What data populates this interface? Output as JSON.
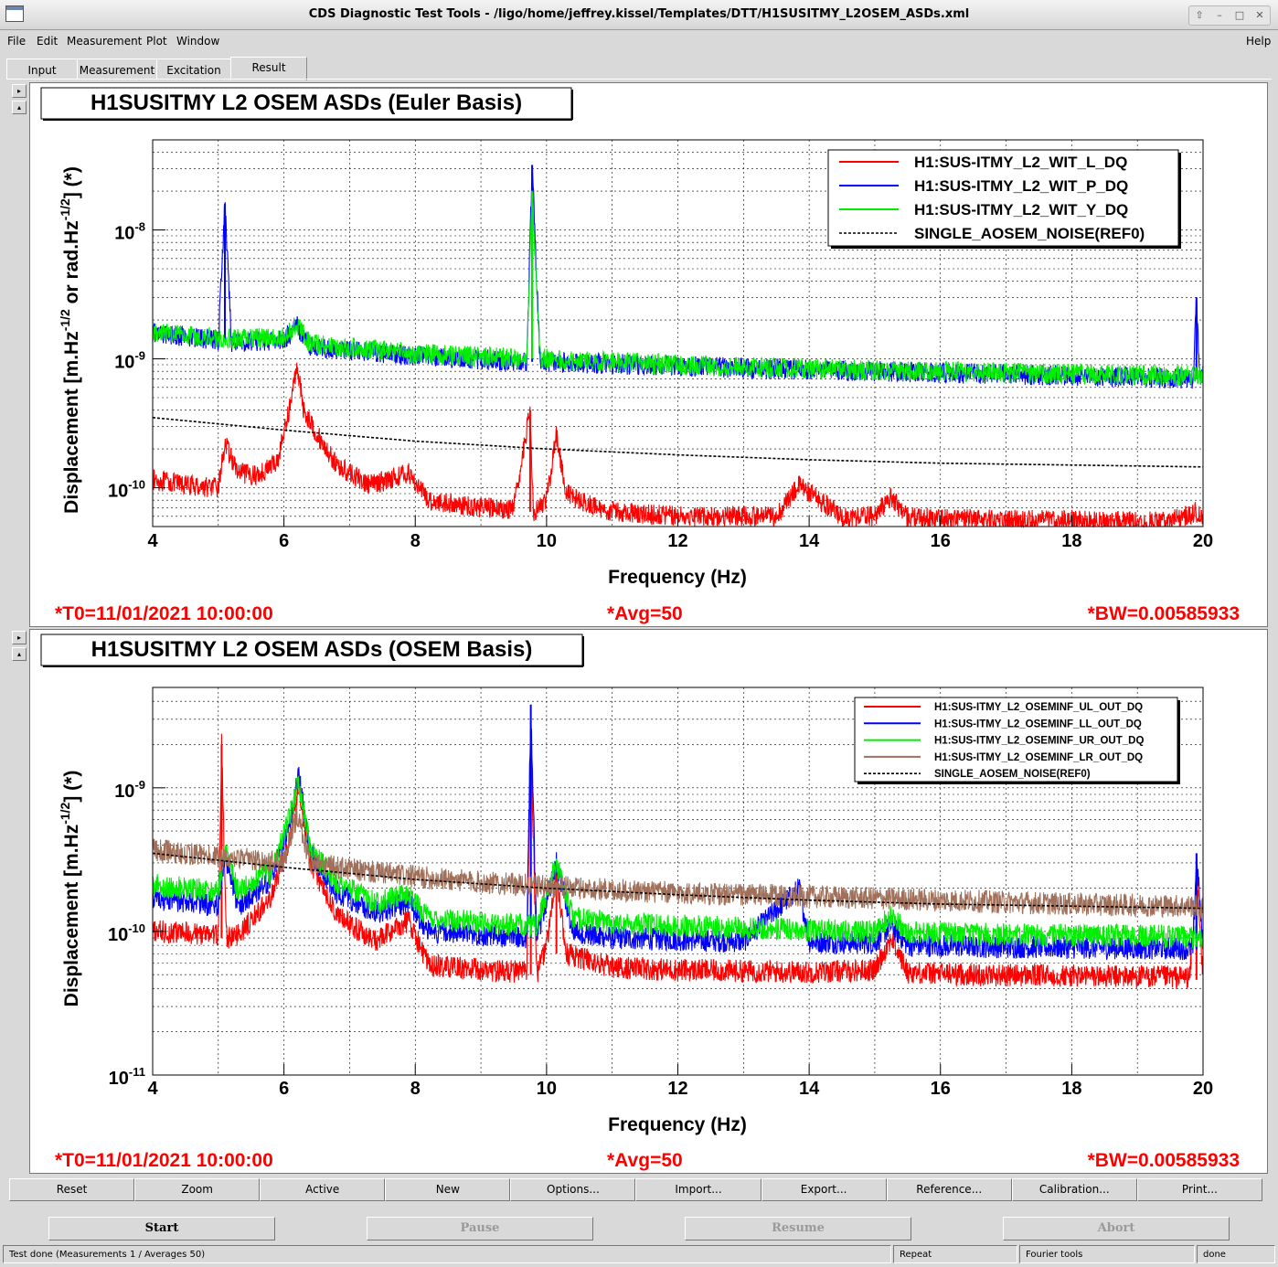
{
  "window": {
    "title": "CDS Diagnostic Test Tools - /ligo/home/jeffrey.kissel/Templates/DTT/H1SUSITMY_L2OSEM_ASDs.xml"
  },
  "menu": {
    "file": "File",
    "edit": "Edit",
    "measurement": "Measurement",
    "plot": "Plot",
    "window": "Window",
    "help": "Help"
  },
  "tabs": [
    "Input",
    "Measurement",
    "Excitation",
    "Result"
  ],
  "active_tab": "Result",
  "plots": [
    {
      "title": "H1SUSITMY L2 OSEM ASDs (Euler Basis)",
      "xlabel": "Frequency (Hz)",
      "ylabel": "Displacement [m.Hz^-1/2 or rad.Hz^-1/2] (*)",
      "info": {
        "t0": "*T0=11/01/2021 10:00:00",
        "avg": "*Avg=50",
        "bw": "*BW=0.00585933"
      },
      "legend": [
        "H1:SUS-ITMY_L2_WIT_L_DQ",
        "H1:SUS-ITMY_L2_WIT_P_DQ",
        "H1:SUS-ITMY_L2_WIT_Y_DQ",
        "SINGLE_AOSEM_NOISE(REF0)"
      ]
    },
    {
      "title": "H1SUSITMY L2 OSEM ASDs (OSEM Basis)",
      "xlabel": "Frequency (Hz)",
      "ylabel": "Displacement [m.Hz^-1/2] (*)",
      "info": {
        "t0": "*T0=11/01/2021 10:00:00",
        "avg": "*Avg=50",
        "bw": "*BW=0.00585933"
      },
      "legend": [
        "H1:SUS-ITMY_L2_OSEMINF_UL_OUT_DQ",
        "H1:SUS-ITMY_L2_OSEMINF_LL_OUT_DQ",
        "H1:SUS-ITMY_L2_OSEMINF_UR_OUT_DQ",
        "H1:SUS-ITMY_L2_OSEMINF_LR_OUT_DQ",
        "SINGLE_AOSEM_NOISE(REF0)"
      ]
    }
  ],
  "chart_data": [
    {
      "type": "line",
      "title": "H1SUSITMY L2 OSEM ASDs (Euler Basis)",
      "xlabel": "Frequency (Hz)",
      "ylabel": "Displacement [m.Hz^-1/2 or rad.Hz^-1/2] (*)",
      "xlim": [
        4,
        20
      ],
      "ylim": [
        5e-11,
        5e-08
      ],
      "yscale": "log",
      "grid": true,
      "legend_position": "top-right",
      "x_ticks": [
        4,
        6,
        8,
        10,
        12,
        14,
        16,
        18,
        20
      ],
      "y_ticks": [
        "10^-10",
        "10^-9",
        "10^-8"
      ],
      "series": [
        {
          "name": "H1:SUS-ITMY_L2_WIT_L_DQ",
          "color": "#ff0000",
          "x": [
            4,
            4.5,
            5.0,
            5.1,
            5.3,
            5.6,
            5.9,
            6.1,
            6.2,
            6.3,
            6.5,
            6.8,
            7.3,
            7.9,
            8.2,
            8.8,
            9.5,
            9.75,
            9.8,
            10.0,
            10.15,
            10.3,
            10.8,
            11.5,
            12.5,
            13.5,
            13.85,
            14.5,
            15.0,
            15.25,
            15.5,
            16.5,
            17.5,
            18.5,
            19.5,
            19.9,
            20
          ],
          "y": [
            1.15e-10,
            1.05e-10,
            1e-10,
            2.2e-10,
            1.3e-10,
            1.25e-10,
            1.6e-10,
            4.5e-10,
            9e-10,
            4e-10,
            2.6e-10,
            1.5e-10,
            1.05e-10,
            1.3e-10,
            8e-11,
            7.2e-11,
            6.8e-11,
            4e-10,
            6.5e-11,
            8e-11,
            2.6e-10,
            9e-11,
            6.8e-11,
            6.2e-11,
            6e-11,
            6e-11,
            1.05e-10,
            5.9e-11,
            6.1e-11,
            8.5e-11,
            5.9e-11,
            5.7e-11,
            5.6e-11,
            5.5e-11,
            5.5e-11,
            6.5e-11,
            5.5e-11
          ]
        },
        {
          "name": "H1:SUS-ITMY_L2_WIT_P_DQ",
          "color": "#0000ff",
          "x": [
            4,
            5.0,
            5.1,
            5.2,
            6.0,
            6.2,
            6.4,
            8.0,
            9.7,
            9.78,
            9.9,
            12,
            14,
            16,
            18,
            19.85,
            19.9,
            19.95,
            20
          ],
          "y": [
            1.6e-09,
            1.4e-09,
            1.6e-08,
            1.35e-09,
            1.4e-09,
            1.8e-09,
            1.25e-09,
            1.05e-09,
            9.5e-10,
            3.2e-08,
            9.5e-10,
            8.8e-10,
            8.2e-10,
            7.8e-10,
            7.4e-10,
            7e-10,
            3e-09,
            7e-10,
            7.2e-10
          ]
        },
        {
          "name": "H1:SUS-ITMY_L2_WIT_Y_DQ",
          "color": "#00ee00",
          "x": [
            4,
            5.0,
            6.0,
            6.2,
            6.4,
            8.0,
            9.7,
            9.78,
            9.9,
            12,
            14,
            16,
            18,
            20
          ],
          "y": [
            1.65e-09,
            1.45e-09,
            1.45e-09,
            1.85e-09,
            1.3e-09,
            1.1e-09,
            1e-09,
            2e-08,
            1e-09,
            9e-10,
            8.4e-10,
            8e-10,
            7.6e-10,
            7.4e-10
          ]
        },
        {
          "name": "SINGLE_AOSEM_NOISE(REF0)",
          "color": "#000000",
          "dashed": true,
          "x": [
            4,
            6,
            8,
            10,
            12,
            14,
            16,
            18,
            20
          ],
          "y": [
            3.5e-10,
            2.8e-10,
            2.3e-10,
            2e-10,
            1.8e-10,
            1.65e-10,
            1.55e-10,
            1.5e-10,
            1.45e-10
          ]
        }
      ]
    },
    {
      "type": "line",
      "title": "H1SUSITMY L2 OSEM ASDs (OSEM Basis)",
      "xlabel": "Frequency (Hz)",
      "ylabel": "Displacement [m.Hz^-1/2] (*)",
      "xlim": [
        4,
        20
      ],
      "ylim": [
        1e-11,
        5e-09
      ],
      "yscale": "log",
      "grid": true,
      "legend_position": "top-right",
      "x_ticks": [
        4,
        6,
        8,
        10,
        12,
        14,
        16,
        18,
        20
      ],
      "y_ticks": [
        "10^-11",
        "10^-10",
        "10^-9"
      ],
      "series": [
        {
          "name": "H1:SUS-ITMY_L2_OSEMINF_UL_OUT_DQ",
          "color": "#ff0000",
          "x": [
            4,
            5.0,
            5.05,
            5.12,
            5.3,
            5.8,
            6.1,
            6.22,
            6.4,
            6.8,
            7.4,
            7.9,
            8.2,
            9.0,
            9.7,
            9.76,
            9.85,
            10.0,
            10.15,
            10.3,
            11,
            12,
            13,
            14,
            15,
            15.25,
            15.5,
            16.5,
            18,
            19.8,
            19.9,
            20
          ],
          "y": [
            1e-10,
            9.5e-11,
            2e-09,
            9e-11,
            9.5e-11,
            1.7e-10,
            4.5e-10,
            1e-09,
            3e-10,
            1.3e-10,
            8.5e-11,
            1.2e-10,
            5.8e-11,
            5.4e-11,
            5.2e-11,
            2.5e-09,
            5e-11,
            8e-11,
            2.5e-10,
            7e-11,
            5.6e-11,
            5.4e-11,
            5.3e-11,
            5.2e-11,
            5.4e-11,
            9e-11,
            5.2e-11,
            5e-11,
            4.9e-11,
            4.8e-11,
            2.5e-10,
            4.6e-11
          ]
        },
        {
          "name": "H1:SUS-ITMY_L2_OSEMINF_LL_OUT_DQ",
          "color": "#0000ff",
          "x": [
            4,
            5.0,
            5.1,
            5.3,
            5.8,
            6.1,
            6.22,
            6.4,
            6.8,
            7.4,
            7.9,
            8.2,
            9.0,
            9.7,
            9.76,
            9.85,
            10.15,
            10.4,
            11,
            13,
            13.85,
            14,
            15,
            15.25,
            15.5,
            17,
            19.85,
            19.9,
            20
          ],
          "y": [
            1.7e-10,
            1.5e-10,
            3.5e-10,
            1.5e-10,
            2.3e-10,
            6e-10,
            1.25e-09,
            3.5e-10,
            1.9e-10,
            1.35e-10,
            1.6e-10,
            1e-10,
            9.5e-11,
            9e-11,
            3.8e-09,
            9e-11,
            3e-10,
            1e-10,
            9e-11,
            8.5e-11,
            2e-10,
            8.5e-11,
            8.3e-11,
            1.1e-10,
            8e-11,
            7.8e-11,
            7.6e-11,
            3.5e-10,
            7.5e-11
          ]
        },
        {
          "name": "H1:SUS-ITMY_L2_OSEMINF_UR_OUT_DQ",
          "color": "#00ee00",
          "x": [
            4,
            5.0,
            5.1,
            5.3,
            5.8,
            6.1,
            6.22,
            6.4,
            6.8,
            7.4,
            7.9,
            8.2,
            9.0,
            9.7,
            9.85,
            10.15,
            10.4,
            11,
            13,
            15,
            15.25,
            15.5,
            17,
            20
          ],
          "y": [
            2.1e-10,
            1.9e-10,
            3.8e-10,
            1.9e-10,
            2.6e-10,
            6.5e-10,
            1.15e-09,
            3.8e-10,
            2.2e-10,
            1.6e-10,
            1.8e-10,
            1.25e-10,
            1.15e-10,
            1.1e-10,
            1.1e-10,
            3e-10,
            1.25e-10,
            1.15e-10,
            1.05e-10,
            1e-10,
            1.3e-10,
            9.8e-11,
            9.5e-11,
            9.2e-11
          ]
        },
        {
          "name": "H1:SUS-ITMY_L2_OSEMINF_LR_OUT_DQ",
          "color": "#a0705a",
          "x": [
            4,
            5.0,
            6.0,
            6.2,
            6.4,
            7,
            8,
            9,
            10,
            12,
            14,
            16,
            18,
            19.9,
            20
          ],
          "y": [
            3.7e-10,
            3.3e-10,
            3e-10,
            6.5e-10,
            3e-10,
            2.7e-10,
            2.4e-10,
            2.2e-10,
            2.05e-10,
            1.85e-10,
            1.75e-10,
            1.65e-10,
            1.55e-10,
            1.5e-10,
            1.45e-10
          ]
        },
        {
          "name": "SINGLE_AOSEM_NOISE(REF0)",
          "color": "#000000",
          "dashed": true,
          "x": [
            4,
            6,
            8,
            10,
            12,
            14,
            16,
            18,
            20
          ],
          "y": [
            3.5e-10,
            2.8e-10,
            2.3e-10,
            2e-10,
            1.8e-10,
            1.65e-10,
            1.55e-10,
            1.5e-10,
            1.45e-10
          ]
        }
      ]
    }
  ],
  "bottom_buttons": [
    "Reset",
    "Zoom",
    "Active",
    "New",
    "Options...",
    "Import...",
    "Export...",
    "Reference...",
    "Calibration...",
    "Print..."
  ],
  "control_buttons": {
    "start": "Start",
    "pause": "Pause",
    "resume": "Resume",
    "abort": "Abort"
  },
  "status": {
    "message": "Test done (Measurements 1 / Averages 50)",
    "repeat": "Repeat",
    "fourier": "Fourier tools",
    "state": "done"
  }
}
